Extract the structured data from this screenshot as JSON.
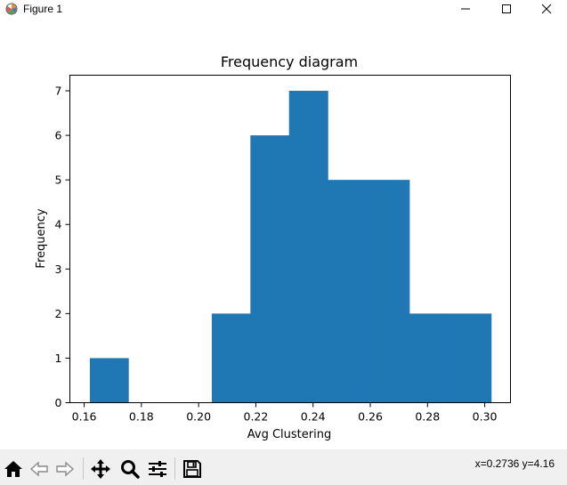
{
  "window": {
    "title": "Figure 1",
    "controls": [
      "minimize",
      "maximize",
      "close"
    ]
  },
  "toolbar": {
    "buttons": [
      {
        "name": "home-button",
        "icon": "home-icon"
      },
      {
        "name": "back-button",
        "icon": "arrow-left-icon"
      },
      {
        "name": "forward-button",
        "icon": "arrow-right-icon"
      },
      {
        "name": "pan-button",
        "icon": "move-icon"
      },
      {
        "name": "zoom-button",
        "icon": "magnifier-icon"
      },
      {
        "name": "configure-subplots-button",
        "icon": "sliders-icon"
      },
      {
        "name": "save-button",
        "icon": "floppy-icon"
      }
    ],
    "coordinates": "x=0.2736 y=4.16"
  },
  "chart_data": {
    "type": "bar",
    "title": "Frequency diagram",
    "xlabel": "Avg Clustering",
    "ylabel": "Frequency",
    "bin_edges": [
      0.162,
      0.1755,
      0.1891,
      0.2046,
      0.2181,
      0.2316,
      0.2452,
      0.2587,
      0.2737,
      0.2872,
      0.3023
    ],
    "values": [
      1,
      0,
      0,
      2,
      6,
      7,
      5,
      5,
      2,
      2
    ],
    "xticks": [
      "0.16",
      "0.18",
      "0.20",
      "0.22",
      "0.24",
      "0.26",
      "0.28",
      "0.30"
    ],
    "yticks": [
      "0",
      "1",
      "2",
      "3",
      "4",
      "5",
      "6",
      "7"
    ],
    "xlim": [
      0.155,
      0.309
    ],
    "ylim": [
      0,
      7.35
    ],
    "bar_color": "#1f77b4",
    "grid": false,
    "legend": "none"
  }
}
